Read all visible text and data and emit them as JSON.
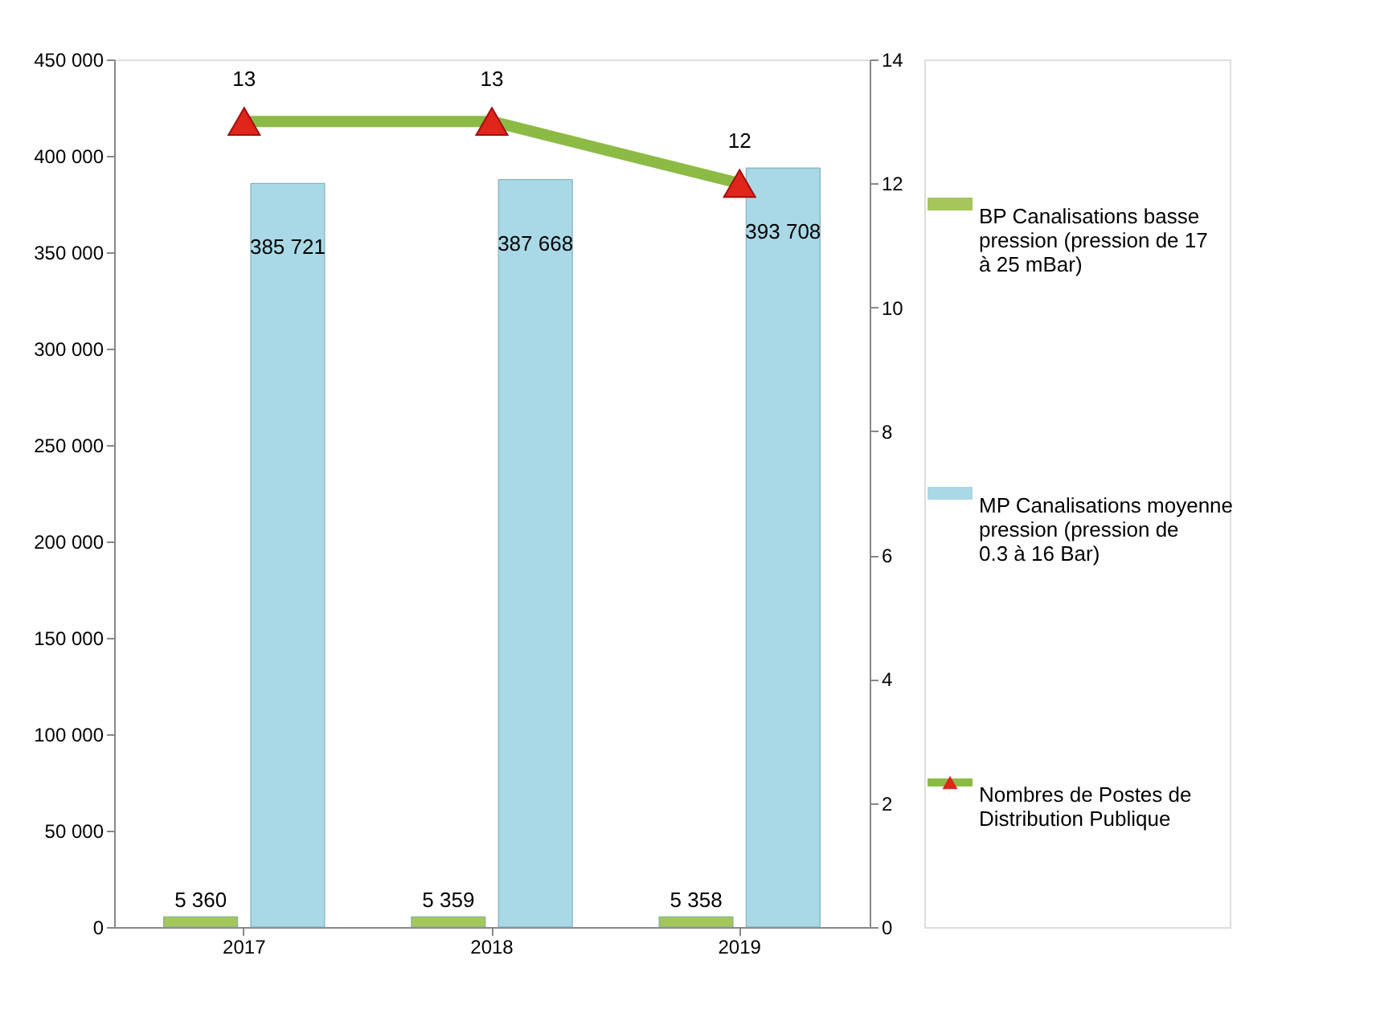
{
  "chart_data": {
    "type": "bar",
    "categories": [
      "2017",
      "2018",
      "2019"
    ],
    "series": [
      {
        "name": "BP Canalisations basse pression (pression de 17 à 25 mBar)",
        "color": "#a4c65a",
        "values": [
          5360,
          5359,
          5358
        ],
        "value_labels": [
          "5 360",
          "5 359",
          "5 358"
        ]
      },
      {
        "name": "MP Canalisations moyenne pression (pression de 0.3 à 16 Bar)",
        "color": "#a9d9e6",
        "values": [
          385721,
          387668,
          393708
        ],
        "value_labels": [
          "385 721",
          "387 668",
          "393 708"
        ]
      },
      {
        "name": "Nombres de Postes de Distribution Publique",
        "type": "line",
        "axis": "y2",
        "color": "#8cbb45",
        "marker": "triangle",
        "values": [
          13,
          13,
          12
        ],
        "value_labels": [
          "13",
          "13",
          "12"
        ]
      }
    ],
    "ylim": [
      0,
      450000
    ],
    "yticks": [
      0,
      {
        "value": 50000,
        "label": "50 000"
      },
      {
        "value": 100000,
        "label": "100 000"
      },
      {
        "value": 150000,
        "label": "150 000"
      },
      {
        "value": 200000,
        "label": "200 000"
      },
      {
        "value": 250000,
        "label": "250 000"
      },
      {
        "value": 300000,
        "label": "300 000"
      },
      {
        "value": 350000,
        "label": "350 000"
      },
      {
        "value": 400000,
        "label": "400 000"
      },
      {
        "value": 450000,
        "label": "450 000"
      }
    ],
    "y2lim": [
      0,
      14
    ],
    "y2ticks": [
      0,
      2,
      4,
      6,
      8,
      10,
      12,
      14
    ],
    "grid": false,
    "legend": "right"
  }
}
